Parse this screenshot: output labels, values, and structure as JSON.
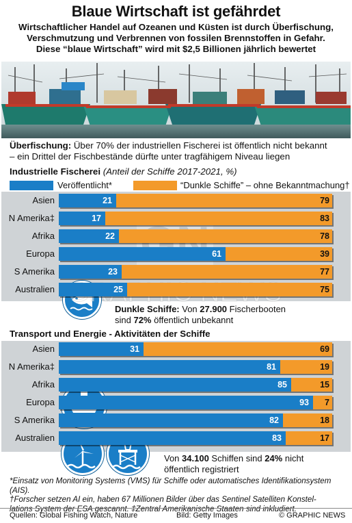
{
  "header": {
    "title": "Blaue Wirtschaft ist gefährdet",
    "subtitle_lines": [
      "Wirtschaftlicher Handel auf Ozeanen und Küsten ist durch Überfischung,",
      "Verschmutzung und Verbrennen von fossilen Brennstoffen in Gefahr.",
      "Diese “blaue Wirtschaft” wird mit $2,5 Billionen jährlich bewertet"
    ]
  },
  "lead": {
    "bold": "Überfischung:",
    "line1_rest": " Über 70% der industriellen Fischerei ist öffentlich nicht bekannt",
    "line2": "– ein Drittel der Fischbestände dürfte unter tragfähigem Niveau liegen"
  },
  "fishing": {
    "title": "Industrielle Fischerei",
    "title_note": "(Anteil der Schiffe 2017-2021, %)",
    "legend_published": "Veröffentlicht*",
    "legend_dark": "“Dunkle Schiffe” – ohne Bekanntmachung†",
    "note_bold": "Dunkle Schiffe:",
    "note_rest": " Von ",
    "note_num": "27.900",
    "note_tail": " Fischerbooten",
    "note_line2a": "sind ",
    "note_line2b": "72%",
    "note_line2c": " öffentlich unbekannt"
  },
  "transport": {
    "title": "Transport und Energie - Aktivitäten der Schiffe",
    "note_a": "Von ",
    "note_num": "34.100",
    "note_b": " Schiffen sind ",
    "note_pct": "24%",
    "note_c": " nicht",
    "note_line2": "öffentlich registriert"
  },
  "footnotes": {
    "line1": "*Einsatz von Monitoring Systems (VMS) für Schiffe oder automatisches Identifikationsystem (AIS).",
    "line2": "†Forscher setzen AI ein, haben 67 Millionen Bilder über das Sentinel Satelliten  Konstel-",
    "line3": "lations System der ESA gescannt.  ‡Zentral Amerikanische Staaten sind inkludiert."
  },
  "sources": {
    "left": "Quellen: Global Fishing Watch, Nature",
    "middle": "Bild: Getty Images",
    "right": "© GRAPHIC NEWS"
  },
  "watermark": "GRAPHIC NEWS",
  "colors": {
    "published": "#1a7ec7",
    "dark": "#f39a2a",
    "band": "#cfd3d6"
  },
  "chart_data": [
    {
      "type": "bar",
      "stacked": true,
      "orientation": "horizontal",
      "title": "Industrielle Fischerei",
      "subtitle": "(Anteil der Schiffe 2017-2021, %)",
      "categories": [
        "Asien",
        "N Amerika‡",
        "Afrika",
        "Europa",
        "S Amerika",
        "Australien"
      ],
      "series": [
        {
          "name": "Veröffentlicht*",
          "values": [
            21,
            17,
            22,
            61,
            23,
            25
          ]
        },
        {
          "name": "“Dunkle Schiffe” – ohne Bekanntmachung†",
          "values": [
            79,
            83,
            78,
            39,
            77,
            75
          ]
        }
      ],
      "xlim": [
        0,
        100
      ]
    },
    {
      "type": "bar",
      "stacked": true,
      "orientation": "horizontal",
      "title": "Transport und Energie - Aktivitäten der Schiffe",
      "categories": [
        "Asien",
        "N Amerika‡",
        "Afrika",
        "Europa",
        "S Amerika",
        "Australien"
      ],
      "series": [
        {
          "name": "Veröffentlicht*",
          "values": [
            31,
            81,
            85,
            93,
            82,
            83
          ]
        },
        {
          "name": "“Dunkle Schiffe” – ohne Bekanntmachung†",
          "values": [
            69,
            19,
            15,
            7,
            18,
            17
          ]
        }
      ],
      "xlim": [
        0,
        100
      ]
    }
  ]
}
